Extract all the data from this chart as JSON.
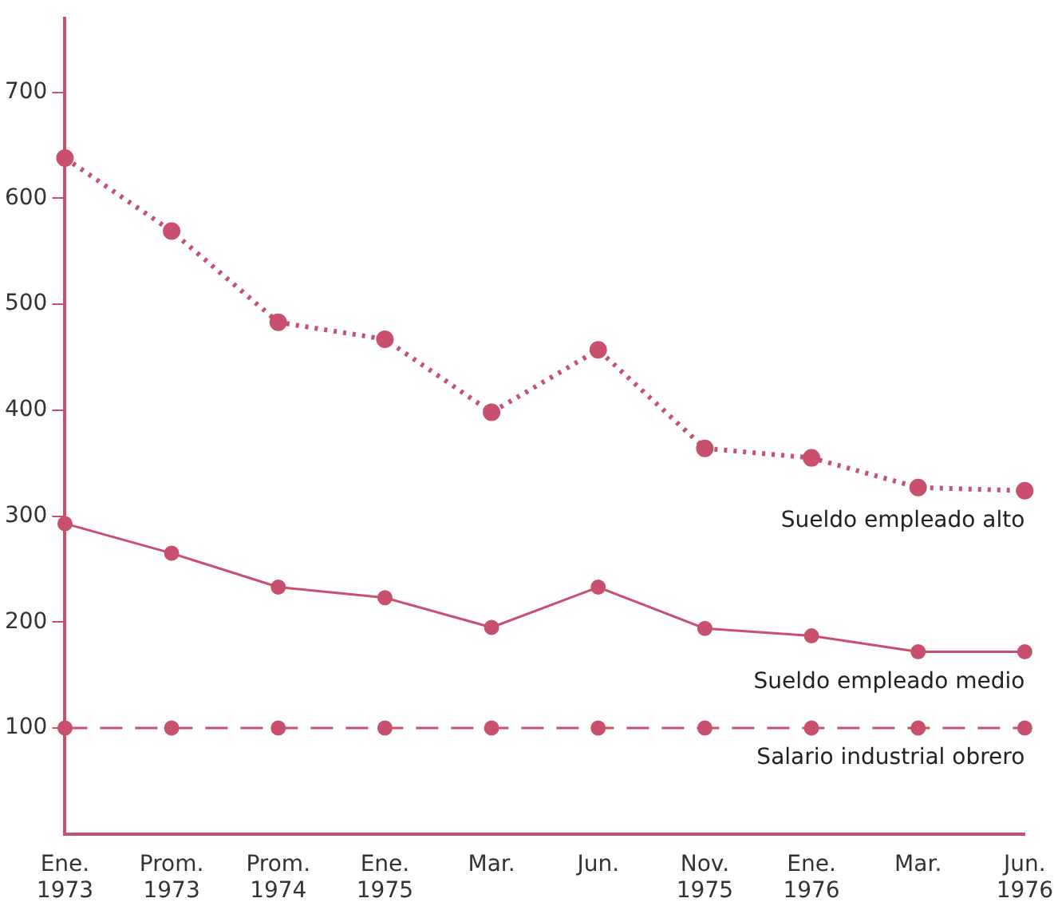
{
  "chart_data": {
    "type": "line",
    "categories": [
      "Ene.\n1973",
      "Prom.\n1973",
      "Prom.\n1974",
      "Ene.\n1975",
      "Mar.",
      "Jun.",
      "Nov.\n1975",
      "Ene.\n1976",
      "Mar.",
      "Jun.\n1976"
    ],
    "series": [
      {
        "name": "Sueldo empleado alto",
        "color": "#c8506e",
        "line_style": "dotted",
        "values": [
          638,
          569,
          483,
          467,
          398,
          457,
          364,
          355,
          327,
          324
        ]
      },
      {
        "name": "Sueldo empleado medio",
        "color": "#c8506e",
        "line_style": "solid",
        "values": [
          293,
          265,
          233,
          223,
          195,
          233,
          194,
          187,
          172,
          172
        ]
      },
      {
        "name": "Salario industrial obrero",
        "color": "#c8506e",
        "line_style": "dashed",
        "values": [
          100,
          100,
          100,
          100,
          100,
          100,
          100,
          100,
          100,
          100
        ]
      }
    ],
    "ylim": [
      0,
      770
    ],
    "yticks": [
      100,
      200,
      300,
      400,
      500,
      600,
      700
    ],
    "grid": false,
    "legend": false,
    "marker": "circle"
  }
}
